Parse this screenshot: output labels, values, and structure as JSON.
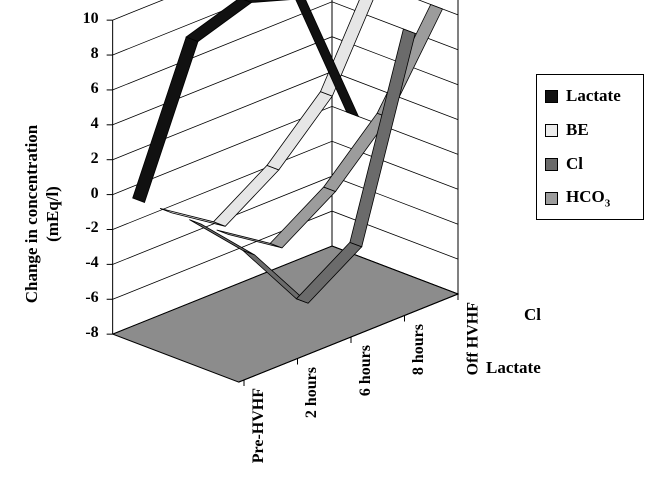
{
  "chart_data": {
    "type": "line",
    "style": "3d-ribbon",
    "title": "",
    "ylabel": "Change in concentration (mEq/l)",
    "ylabel_lines": [
      "Change in concentration",
      "(mEq/l)"
    ],
    "ylim": [
      -8,
      10
    ],
    "yticks": [
      "10",
      "8",
      "6",
      "4",
      "2",
      "0",
      "-2",
      "-4",
      "-6",
      "-8"
    ],
    "categories": [
      "Pre-HVHF",
      "2 hours",
      "6 hours",
      "8 hours",
      "Off HVHF"
    ],
    "depth_labels": [
      "Cl",
      "Lactate"
    ],
    "series": [
      {
        "name": "Lactate",
        "color": "#111111",
        "values": [
          0,
          8,
          9,
          8,
          0
        ]
      },
      {
        "name": "BE",
        "color": "#e6e6e6",
        "values": [
          0,
          -2,
          0,
          3,
          9
        ]
      },
      {
        "name": "Cl",
        "color": "#6b6b6b",
        "values": [
          0,
          -3,
          -7,
          -5,
          6
        ]
      },
      {
        "name": "HCO3",
        "color": "#9c9c9c",
        "values": [
          0,
          -2,
          0,
          3,
          8
        ]
      }
    ],
    "legend": {
      "position": "right",
      "items": [
        {
          "label": "Lactate",
          "sub": ""
        },
        {
          "label": "BE",
          "sub": ""
        },
        {
          "label": "Cl",
          "sub": ""
        },
        {
          "label": "HCO",
          "sub": "3"
        }
      ]
    },
    "floor_color": "#8c8c8c",
    "grid": true
  }
}
